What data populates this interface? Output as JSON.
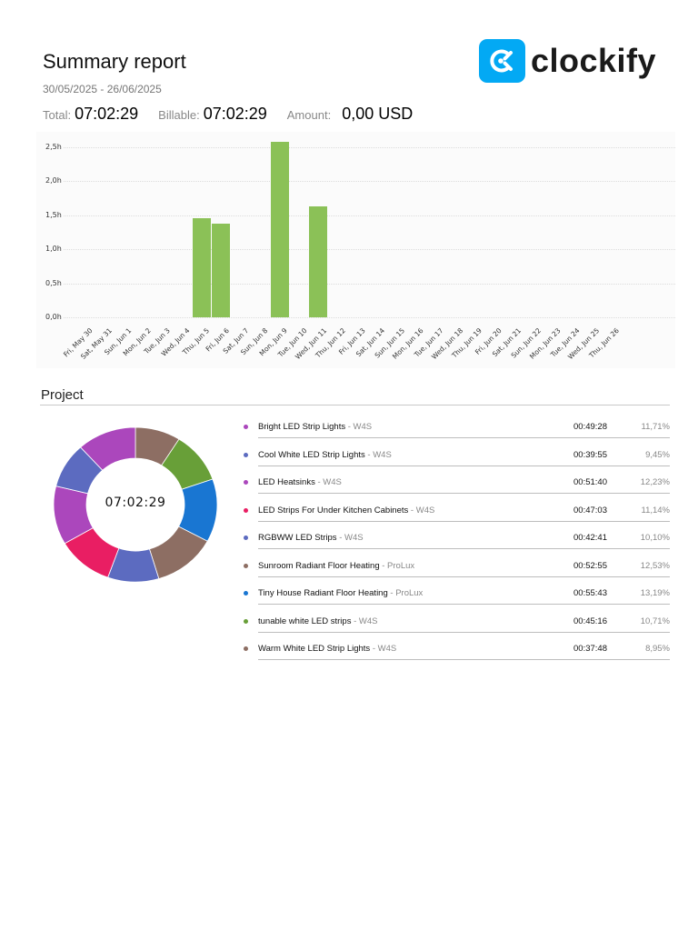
{
  "header": {
    "title": "Summary report",
    "date_range": "30/05/2025 - 26/06/2025",
    "total_label": "Total:",
    "total_value": "07:02:29",
    "billable_label": "Billable:",
    "billable_value": "07:02:29",
    "amount_label": "Amount:",
    "amount_value": "0,00 USD"
  },
  "logo": {
    "text": "clockify",
    "icon": "clockify-logo-icon",
    "color": "#03a9f4"
  },
  "chart_data": [
    {
      "type": "bar",
      "title": "",
      "xlabel": "",
      "ylabel": "",
      "ylim": [
        0,
        2.5
      ],
      "y_ticks": [
        "0,0h",
        "0,5h",
        "1,0h",
        "1,5h",
        "2,0h",
        "2,5h"
      ],
      "grid": true,
      "bar_color": "#8bc157",
      "categories": [
        "Fri, May 30",
        "Sat, May 31",
        "Sun, Jun 1",
        "Mon, Jun 2",
        "Tue, Jun 3",
        "Wed, Jun 4",
        "Thu, Jun 5",
        "Fri, Jun 6",
        "Sat, Jun 7",
        "Sun, Jun 8",
        "Mon, Jun 9",
        "Tue, Jun 10",
        "Wed, Jun 11",
        "Thu, Jun 12",
        "Fri, Jun 13",
        "Sat, Jun 14",
        "Sun, Jun 15",
        "Mon, Jun 16",
        "Tue, Jun 17",
        "Wed, Jun 18",
        "Thu, Jun 19",
        "Fri, Jun 20",
        "Sat, Jun 21",
        "Sun, Jun 22",
        "Mon, Jun 23",
        "Tue, Jun 24",
        "Wed, Jun 25",
        "Thu, Jun 26"
      ],
      "values": [
        0,
        0,
        0,
        0,
        0,
        0,
        1.46,
        1.38,
        0,
        0,
        2.58,
        0,
        1.63,
        0,
        0,
        0,
        0,
        0,
        0,
        0,
        0,
        0,
        0,
        0,
        0,
        0,
        0,
        0
      ]
    },
    {
      "type": "pie",
      "title": "Project",
      "center_label": "07:02:29",
      "donut": true,
      "start": "top, clockwise, reverse of list order",
      "categories": [
        "Warm White LED Strip Lights",
        "tunable white LED strips",
        "Tiny House Radiant Floor Heating",
        "Sunroom Radiant Floor Heating",
        "RGBWW LED Strips",
        "LED Strips For Under Kitchen Cabinets",
        "LED Heatsinks",
        "Cool White LED Strip Lights",
        "Bright LED Strip Lights"
      ],
      "values": [
        8.95,
        10.71,
        13.19,
        12.53,
        10.1,
        11.14,
        12.23,
        9.45,
        11.71
      ],
      "colors": [
        "#8d6e63",
        "#689f38",
        "#1976d2",
        "#8d6e63",
        "#5c6bc0",
        "#e91e63",
        "#ab47bc",
        "#5c6bc0",
        "#ab47bc"
      ]
    }
  ],
  "project_section": {
    "title": "Project",
    "total": "07:02:29",
    "rows": [
      {
        "name": "Bright LED Strip Lights",
        "client": " - W4S",
        "duration": "00:49:28",
        "percent": "11,71%",
        "color": "#ab47bc"
      },
      {
        "name": "Cool White LED Strip Lights",
        "client": " - W4S",
        "duration": "00:39:55",
        "percent": "9,45%",
        "color": "#5c6bc0"
      },
      {
        "name": "LED Heatsinks",
        "client": " - W4S",
        "duration": "00:51:40",
        "percent": "12,23%",
        "color": "#ab47bc"
      },
      {
        "name": "LED Strips For Under Kitchen Cabinets",
        "client": " - W4S",
        "duration": "00:47:03",
        "percent": "11,14%",
        "color": "#e91e63"
      },
      {
        "name": "RGBWW LED Strips",
        "client": " - W4S",
        "duration": "00:42:41",
        "percent": "10,10%",
        "color": "#5c6bc0"
      },
      {
        "name": "Sunroom Radiant Floor Heating",
        "client": " - ProLux",
        "duration": "00:52:55",
        "percent": "12,53%",
        "color": "#8d6e63"
      },
      {
        "name": "Tiny House Radiant Floor Heating",
        "client": " - ProLux",
        "duration": "00:55:43",
        "percent": "13,19%",
        "color": "#1976d2"
      },
      {
        "name": "tunable white LED strips",
        "client": " - W4S",
        "duration": "00:45:16",
        "percent": "10,71%",
        "color": "#689f38"
      },
      {
        "name": "Warm White LED Strip Lights",
        "client": " - W4S",
        "duration": "00:37:48",
        "percent": "8,95%",
        "color": "#8d6e63"
      }
    ]
  }
}
